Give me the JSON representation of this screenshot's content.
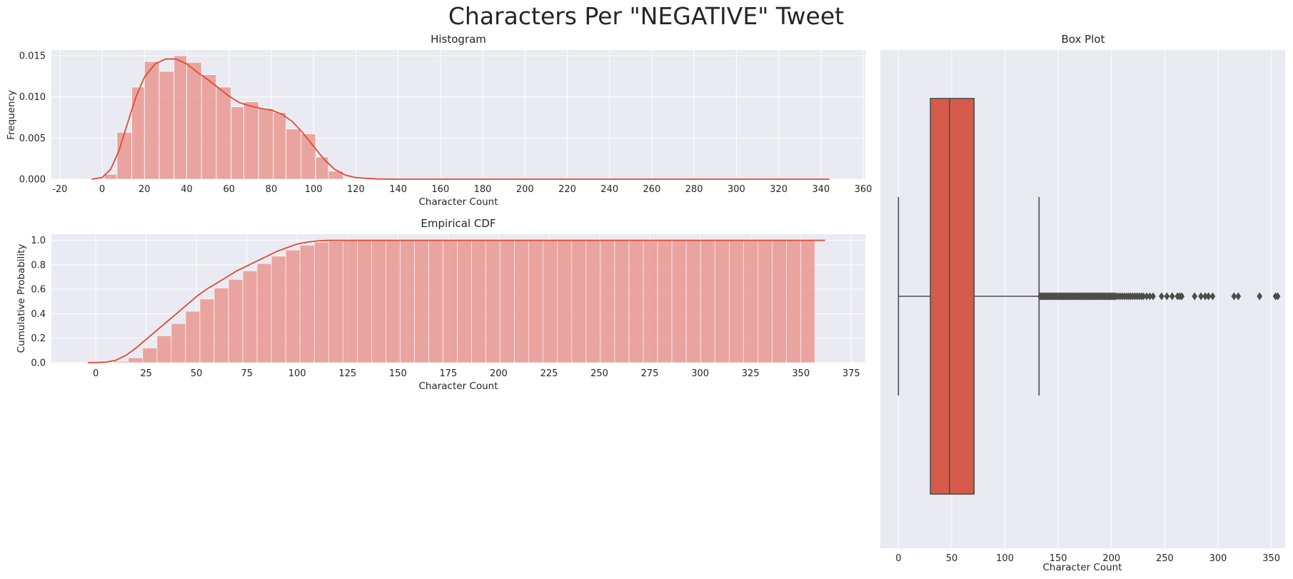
{
  "figure": {
    "suptitle": "Characters Per \"NEGATIVE\" Tweet"
  },
  "colors": {
    "primary": "#E24A33",
    "bar_fill": "#E88C84",
    "box_fill": "#D65B4A",
    "axes_bg": "#EAEAF2",
    "grid": "#FFFFFF",
    "line_gray": "#4C4C4C"
  },
  "chart_data": [
    {
      "type": "bar",
      "subtype": "histogram_with_kde",
      "title": "Histogram",
      "xlabel": "Character Count",
      "ylabel": "Frequency",
      "xlim": [
        -24,
        361
      ],
      "ylim": [
        0,
        0.0157
      ],
      "xticks": [
        -20,
        0,
        20,
        40,
        60,
        80,
        100,
        120,
        140,
        160,
        180,
        200,
        220,
        240,
        260,
        280,
        300,
        320,
        340,
        360
      ],
      "yticks": [
        0.0,
        0.005,
        0.01,
        0.015
      ],
      "ytick_labels": [
        "0.000",
        "0.005",
        "0.010",
        "0.015"
      ],
      "grid": true,
      "bins": [
        {
          "x0": 1,
          "x1": 7,
          "value": 0.0006
        },
        {
          "x0": 7,
          "x1": 14,
          "value": 0.0057
        },
        {
          "x0": 14,
          "x1": 20,
          "value": 0.0112
        },
        {
          "x0": 20,
          "x1": 27,
          "value": 0.0143
        },
        {
          "x0": 27,
          "x1": 34,
          "value": 0.0131
        },
        {
          "x0": 34,
          "x1": 40,
          "value": 0.015
        },
        {
          "x0": 40,
          "x1": 47,
          "value": 0.0142
        },
        {
          "x0": 47,
          "x1": 54,
          "value": 0.0127
        },
        {
          "x0": 54,
          "x1": 61,
          "value": 0.0112
        },
        {
          "x0": 61,
          "x1": 67,
          "value": 0.0088
        },
        {
          "x0": 67,
          "x1": 74,
          "value": 0.0094
        },
        {
          "x0": 74,
          "x1": 81,
          "value": 0.0086
        },
        {
          "x0": 81,
          "x1": 87,
          "value": 0.0081
        },
        {
          "x0": 87,
          "x1": 94,
          "value": 0.0061
        },
        {
          "x0": 94,
          "x1": 101,
          "value": 0.0055
        },
        {
          "x0": 101,
          "x1": 107,
          "value": 0.0027
        },
        {
          "x0": 107,
          "x1": 114,
          "value": 0.001
        }
      ],
      "kde": {
        "x": [
          -5,
          0,
          4,
          8,
          12,
          16,
          20,
          25,
          30,
          35,
          40,
          45,
          50,
          55,
          60,
          65,
          70,
          75,
          80,
          85,
          90,
          95,
          100,
          105,
          110,
          115,
          120,
          125,
          130,
          140,
          160,
          200,
          260,
          344
        ],
        "y": [
          0.0,
          0.0002,
          0.0012,
          0.0035,
          0.0068,
          0.01,
          0.0124,
          0.014,
          0.0146,
          0.0146,
          0.014,
          0.013,
          0.0121,
          0.0111,
          0.0101,
          0.0093,
          0.0089,
          0.0086,
          0.0084,
          0.0079,
          0.007,
          0.0056,
          0.004,
          0.0024,
          0.0012,
          0.0005,
          0.0002,
          0.0001,
          3e-05,
          0.0,
          0.0,
          0.0,
          0.0,
          0.0
        ]
      }
    },
    {
      "type": "bar",
      "subtype": "ecdf_with_kde_cdf",
      "title": "Empirical CDF",
      "xlabel": "Character Count",
      "ylabel": "Cumulative Probability",
      "xlim": [
        -22,
        382
      ],
      "ylim": [
        0,
        1.05
      ],
      "xticks": [
        0,
        25,
        50,
        75,
        100,
        125,
        150,
        175,
        200,
        225,
        250,
        275,
        300,
        325,
        350,
        375
      ],
      "yticks": [
        0.0,
        0.2,
        0.4,
        0.6,
        0.8,
        1.0
      ],
      "ytick_labels": [
        "0.0",
        "0.2",
        "0.4",
        "0.6",
        "0.8",
        "1.0"
      ],
      "grid": true,
      "bin_start": 2,
      "bin_width": 7.1,
      "bin_count": 50,
      "bin_values": [
        0.005,
        0.01,
        0.04,
        0.12,
        0.22,
        0.32,
        0.42,
        0.52,
        0.61,
        0.68,
        0.75,
        0.81,
        0.87,
        0.92,
        0.96,
        0.985,
        0.995,
        0.998,
        0.999,
        1.0,
        1.0,
        1.0,
        1.0,
        1.0,
        1.0,
        1.0,
        1.0,
        1.0,
        1.0,
        1.0,
        1.0,
        1.0,
        1.0,
        1.0,
        1.0,
        1.0,
        1.0,
        1.0,
        1.0,
        1.0,
        1.0,
        1.0,
        1.0,
        1.0,
        1.0,
        1.0,
        1.0,
        1.0,
        1.0,
        1.0
      ],
      "kde_cdf": {
        "x": [
          -4,
          0,
          5,
          10,
          15,
          20,
          25,
          30,
          35,
          40,
          45,
          50,
          55,
          60,
          65,
          70,
          75,
          80,
          85,
          90,
          95,
          100,
          105,
          110,
          115,
          120,
          130,
          150,
          200,
          300,
          362
        ],
        "y": [
          0.0,
          0.001,
          0.004,
          0.02,
          0.06,
          0.12,
          0.19,
          0.26,
          0.33,
          0.4,
          0.47,
          0.54,
          0.6,
          0.65,
          0.7,
          0.75,
          0.79,
          0.83,
          0.87,
          0.91,
          0.94,
          0.97,
          0.985,
          0.995,
          0.999,
          1.0,
          1.0,
          1.0,
          1.0,
          1.0,
          1.0
        ]
      }
    },
    {
      "type": "box",
      "title": "Box Plot",
      "xlabel": "Character Count",
      "xlim": [
        -17,
        363
      ],
      "xticks": [
        0,
        50,
        100,
        150,
        200,
        250,
        300,
        350
      ],
      "grid": true,
      "whisker_low": 0,
      "q1": 30,
      "median": 48,
      "q3": 71,
      "whisker_high": 132,
      "outliers": [
        133,
        134,
        135,
        136,
        137,
        138,
        139,
        140,
        141,
        142,
        143,
        144,
        145,
        146,
        147,
        148,
        149,
        150,
        151,
        152,
        153,
        154,
        155,
        156,
        157,
        158,
        159,
        160,
        161,
        162,
        163,
        164,
        165,
        166,
        167,
        168,
        169,
        170,
        171,
        172,
        173,
        174,
        175,
        176,
        177,
        178,
        179,
        180,
        181,
        182,
        183,
        184,
        185,
        186,
        187,
        188,
        189,
        190,
        191,
        192,
        193,
        194,
        195,
        196,
        197,
        198,
        199,
        200,
        201,
        202,
        203,
        204,
        206,
        208,
        210,
        212,
        214,
        216,
        218,
        220,
        222,
        224,
        226,
        228,
        230,
        233,
        236,
        239,
        247,
        252,
        257,
        262,
        264,
        266,
        278,
        284,
        288,
        291,
        295,
        315,
        319,
        339,
        354,
        356
      ]
    }
  ]
}
